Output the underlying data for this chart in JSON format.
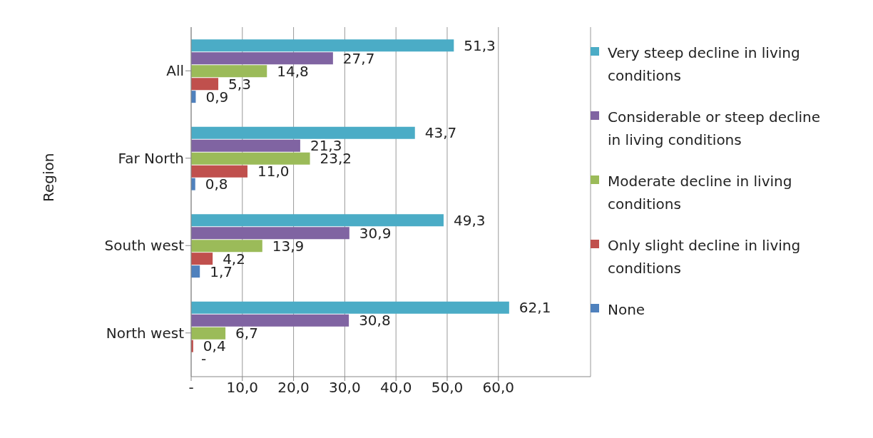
{
  "chart_data": {
    "type": "bar",
    "orientation": "horizontal",
    "ylabel": "Region",
    "categories": [
      "All",
      "Far North",
      "South west",
      "North west"
    ],
    "series": [
      {
        "name": "Very steep decline in living conditions",
        "color": "#4bacc6",
        "values": [
          51.3,
          43.7,
          49.3,
          62.1
        ],
        "value_labels": [
          "51,3",
          "43,7",
          "49,3",
          "62,1"
        ]
      },
      {
        "name": "Considerable or steep decline in living conditions",
        "color": "#8064a2",
        "values": [
          27.7,
          21.3,
          30.9,
          30.8
        ],
        "value_labels": [
          "27,7",
          "21,3",
          "30,9",
          "30,8"
        ]
      },
      {
        "name": "Moderate decline in living conditions",
        "color": "#9bbb59",
        "values": [
          14.8,
          23.2,
          13.9,
          6.7
        ],
        "value_labels": [
          "14,8",
          "23,2",
          "13,9",
          "6,7"
        ]
      },
      {
        "name": "Only slight decline in living conditions",
        "color": "#c0504d",
        "values": [
          5.3,
          11.0,
          4.2,
          0.4
        ],
        "value_labels": [
          "5,3",
          "11,0",
          "4,2",
          "0,4"
        ]
      },
      {
        "name": "None",
        "color": "#4f81bd",
        "values": [
          0.9,
          0.8,
          1.7,
          0
        ],
        "value_labels": [
          "0,9",
          "0,8",
          "1,7",
          "-"
        ]
      }
    ],
    "xlim": [
      0,
      78
    ],
    "xticks": [
      {
        "value": 0,
        "label": "-"
      },
      {
        "value": 10,
        "label": "10,0"
      },
      {
        "value": 20,
        "label": "20,0"
      },
      {
        "value": 30,
        "label": "30,0"
      },
      {
        "value": 40,
        "label": "40,0"
      },
      {
        "value": 50,
        "label": "50,0"
      },
      {
        "value": 60,
        "label": "60,0"
      }
    ],
    "grid": "x",
    "legend": "right"
  }
}
